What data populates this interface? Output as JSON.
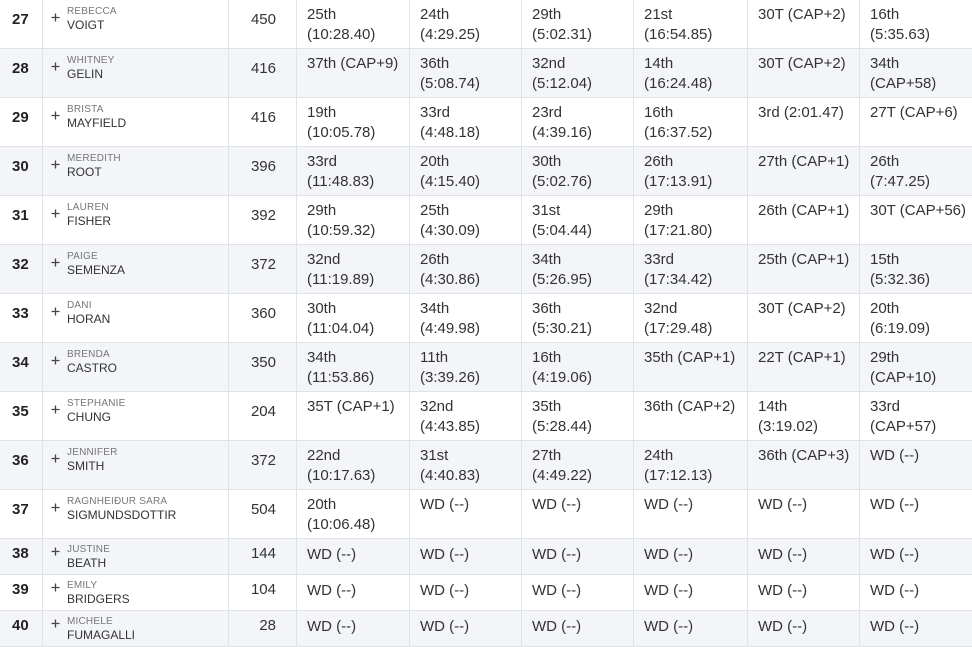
{
  "table": {
    "rows": [
      {
        "rank": 27,
        "first": "REBECCA",
        "last": "VOIGT",
        "points": 450,
        "events": [
          [
            "25th",
            "(10:28.40)"
          ],
          [
            "24th",
            "(4:29.25)"
          ],
          [
            "29th",
            "(5:02.31)"
          ],
          [
            "21st",
            "(16:54.85)"
          ],
          [
            "30T (CAP+2)"
          ],
          [
            "16th",
            "(5:35.63)"
          ]
        ]
      },
      {
        "rank": 28,
        "first": "WHITNEY",
        "last": "GELIN",
        "points": 416,
        "events": [
          [
            "37th (CAP+9)"
          ],
          [
            "36th",
            "(5:08.74)"
          ],
          [
            "32nd",
            "(5:12.04)"
          ],
          [
            "14th",
            "(16:24.48)"
          ],
          [
            "30T (CAP+2)"
          ],
          [
            "34th",
            "(CAP+58)"
          ]
        ]
      },
      {
        "rank": 29,
        "first": "BRISTA",
        "last": "MAYFIELD",
        "points": 416,
        "events": [
          [
            "19th",
            "(10:05.78)"
          ],
          [
            "33rd",
            "(4:48.18)"
          ],
          [
            "23rd",
            "(4:39.16)"
          ],
          [
            "16th",
            "(16:37.52)"
          ],
          [
            "3rd (2:01.47)"
          ],
          [
            "27T (CAP+6)"
          ]
        ]
      },
      {
        "rank": 30,
        "first": "MEREDITH",
        "last": "ROOT",
        "points": 396,
        "events": [
          [
            "33rd",
            "(11:48.83)"
          ],
          [
            "20th",
            "(4:15.40)"
          ],
          [
            "30th",
            "(5:02.76)"
          ],
          [
            "26th",
            "(17:13.91)"
          ],
          [
            "27th (CAP+1)"
          ],
          [
            "26th",
            "(7:47.25)"
          ]
        ]
      },
      {
        "rank": 31,
        "first": "LAUREN",
        "last": "FISHER",
        "points": 392,
        "events": [
          [
            "29th",
            "(10:59.32)"
          ],
          [
            "25th",
            "(4:30.09)"
          ],
          [
            "31st",
            "(5:04.44)"
          ],
          [
            "29th",
            "(17:21.80)"
          ],
          [
            "26th (CAP+1)"
          ],
          [
            "30T (CAP+56)"
          ]
        ]
      },
      {
        "rank": 32,
        "first": "PAIGE",
        "last": "SEMENZA",
        "points": 372,
        "events": [
          [
            "32nd",
            "(11:19.89)"
          ],
          [
            "26th",
            "(4:30.86)"
          ],
          [
            "34th",
            "(5:26.95)"
          ],
          [
            "33rd",
            "(17:34.42)"
          ],
          [
            "25th (CAP+1)"
          ],
          [
            "15th",
            "(5:32.36)"
          ]
        ]
      },
      {
        "rank": 33,
        "first": "DANI",
        "last": "HORAN",
        "points": 360,
        "events": [
          [
            "30th",
            "(11:04.04)"
          ],
          [
            "34th",
            "(4:49.98)"
          ],
          [
            "36th",
            "(5:30.21)"
          ],
          [
            "32nd",
            "(17:29.48)"
          ],
          [
            "30T (CAP+2)"
          ],
          [
            "20th",
            "(6:19.09)"
          ]
        ]
      },
      {
        "rank": 34,
        "first": "BRENDA",
        "last": "CASTRO",
        "points": 350,
        "events": [
          [
            "34th",
            "(11:53.86)"
          ],
          [
            "11th",
            "(3:39.26)"
          ],
          [
            "16th",
            "(4:19.06)"
          ],
          [
            "35th (CAP+1)"
          ],
          [
            "22T (CAP+1)"
          ],
          [
            "29th",
            "(CAP+10)"
          ]
        ]
      },
      {
        "rank": 35,
        "first": "STEPHANIE",
        "last": "CHUNG",
        "points": 204,
        "events": [
          [
            "35T (CAP+1)"
          ],
          [
            "32nd",
            "(4:43.85)"
          ],
          [
            "35th",
            "(5:28.44)"
          ],
          [
            "36th (CAP+2)"
          ],
          [
            "14th",
            "(3:19.02)"
          ],
          [
            "33rd",
            "(CAP+57)"
          ]
        ]
      },
      {
        "rank": 36,
        "first": "JENNIFER",
        "last": "SMITH",
        "points": 372,
        "events": [
          [
            "22nd",
            "(10:17.63)"
          ],
          [
            "31st",
            "(4:40.83)"
          ],
          [
            "27th",
            "(4:49.22)"
          ],
          [
            "24th",
            "(17:12.13)"
          ],
          [
            "36th (CAP+3)"
          ],
          [
            "WD (--)"
          ]
        ]
      },
      {
        "rank": 37,
        "first": "RAGNHEIÐUR SARA",
        "last": "SIGMUNDSDOTTIR",
        "points": 504,
        "events": [
          [
            "20th",
            "(10:06.48)"
          ],
          [
            "WD (--)"
          ],
          [
            "WD (--)"
          ],
          [
            "WD (--)"
          ],
          [
            "WD (--)"
          ],
          [
            "WD (--)"
          ]
        ]
      },
      {
        "rank": 38,
        "first": "JUSTINE",
        "last": "BEATH",
        "points": 144,
        "events": [
          [
            "WD (--)"
          ],
          [
            "WD (--)"
          ],
          [
            "WD (--)"
          ],
          [
            "WD (--)"
          ],
          [
            "WD (--)"
          ],
          [
            "WD (--)"
          ]
        ]
      },
      {
        "rank": 39,
        "first": "EMILY",
        "last": "BRIDGERS",
        "points": 104,
        "events": [
          [
            "WD (--)"
          ],
          [
            "WD (--)"
          ],
          [
            "WD (--)"
          ],
          [
            "WD (--)"
          ],
          [
            "WD (--)"
          ],
          [
            "WD (--)"
          ]
        ]
      },
      {
        "rank": 40,
        "first": "MICHELE",
        "last": "FUMAGALLI",
        "points": 28,
        "events": [
          [
            "WD (--)"
          ],
          [
            "WD (--)"
          ],
          [
            "WD (--)"
          ],
          [
            "WD (--)"
          ],
          [
            "WD (--)"
          ],
          [
            "WD (--)"
          ]
        ]
      }
    ]
  }
}
